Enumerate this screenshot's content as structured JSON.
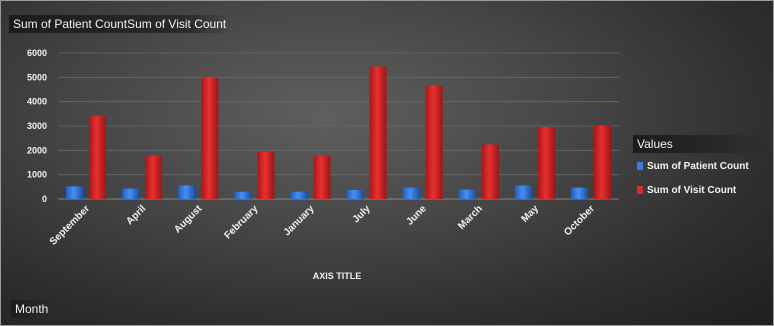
{
  "header": {
    "values_field_1": "Sum of Patient Count",
    "values_field_2": "Sum of Visit Count"
  },
  "footer": {
    "axis_field": "Month"
  },
  "legend": {
    "title": "Values",
    "items": [
      {
        "label": "Sum of Patient Count",
        "color": "#3a7de0"
      },
      {
        "label": "Sum of Visit Count",
        "color": "#d92b2b"
      }
    ]
  },
  "chart_data": {
    "type": "bar",
    "categories": [
      "September",
      "April",
      "August",
      "February",
      "January",
      "July",
      "June",
      "March",
      "May",
      "October"
    ],
    "series": [
      {
        "name": "Sum of Patient Count",
        "values": [
          520,
          430,
          560,
          300,
          300,
          370,
          470,
          390,
          560,
          470
        ]
      },
      {
        "name": "Sum of Visit Count",
        "values": [
          3430,
          1790,
          4990,
          1940,
          1780,
          5440,
          4660,
          2240,
          2960,
          3020
        ]
      }
    ],
    "xlabel": "AXIS TITLE",
    "ylabel": "",
    "ylim": [
      0,
      6000
    ],
    "yticks": [
      "0",
      "1000",
      "2000",
      "3000",
      "4000",
      "5000",
      "6000"
    ],
    "grid": true,
    "legend_position": "right"
  }
}
